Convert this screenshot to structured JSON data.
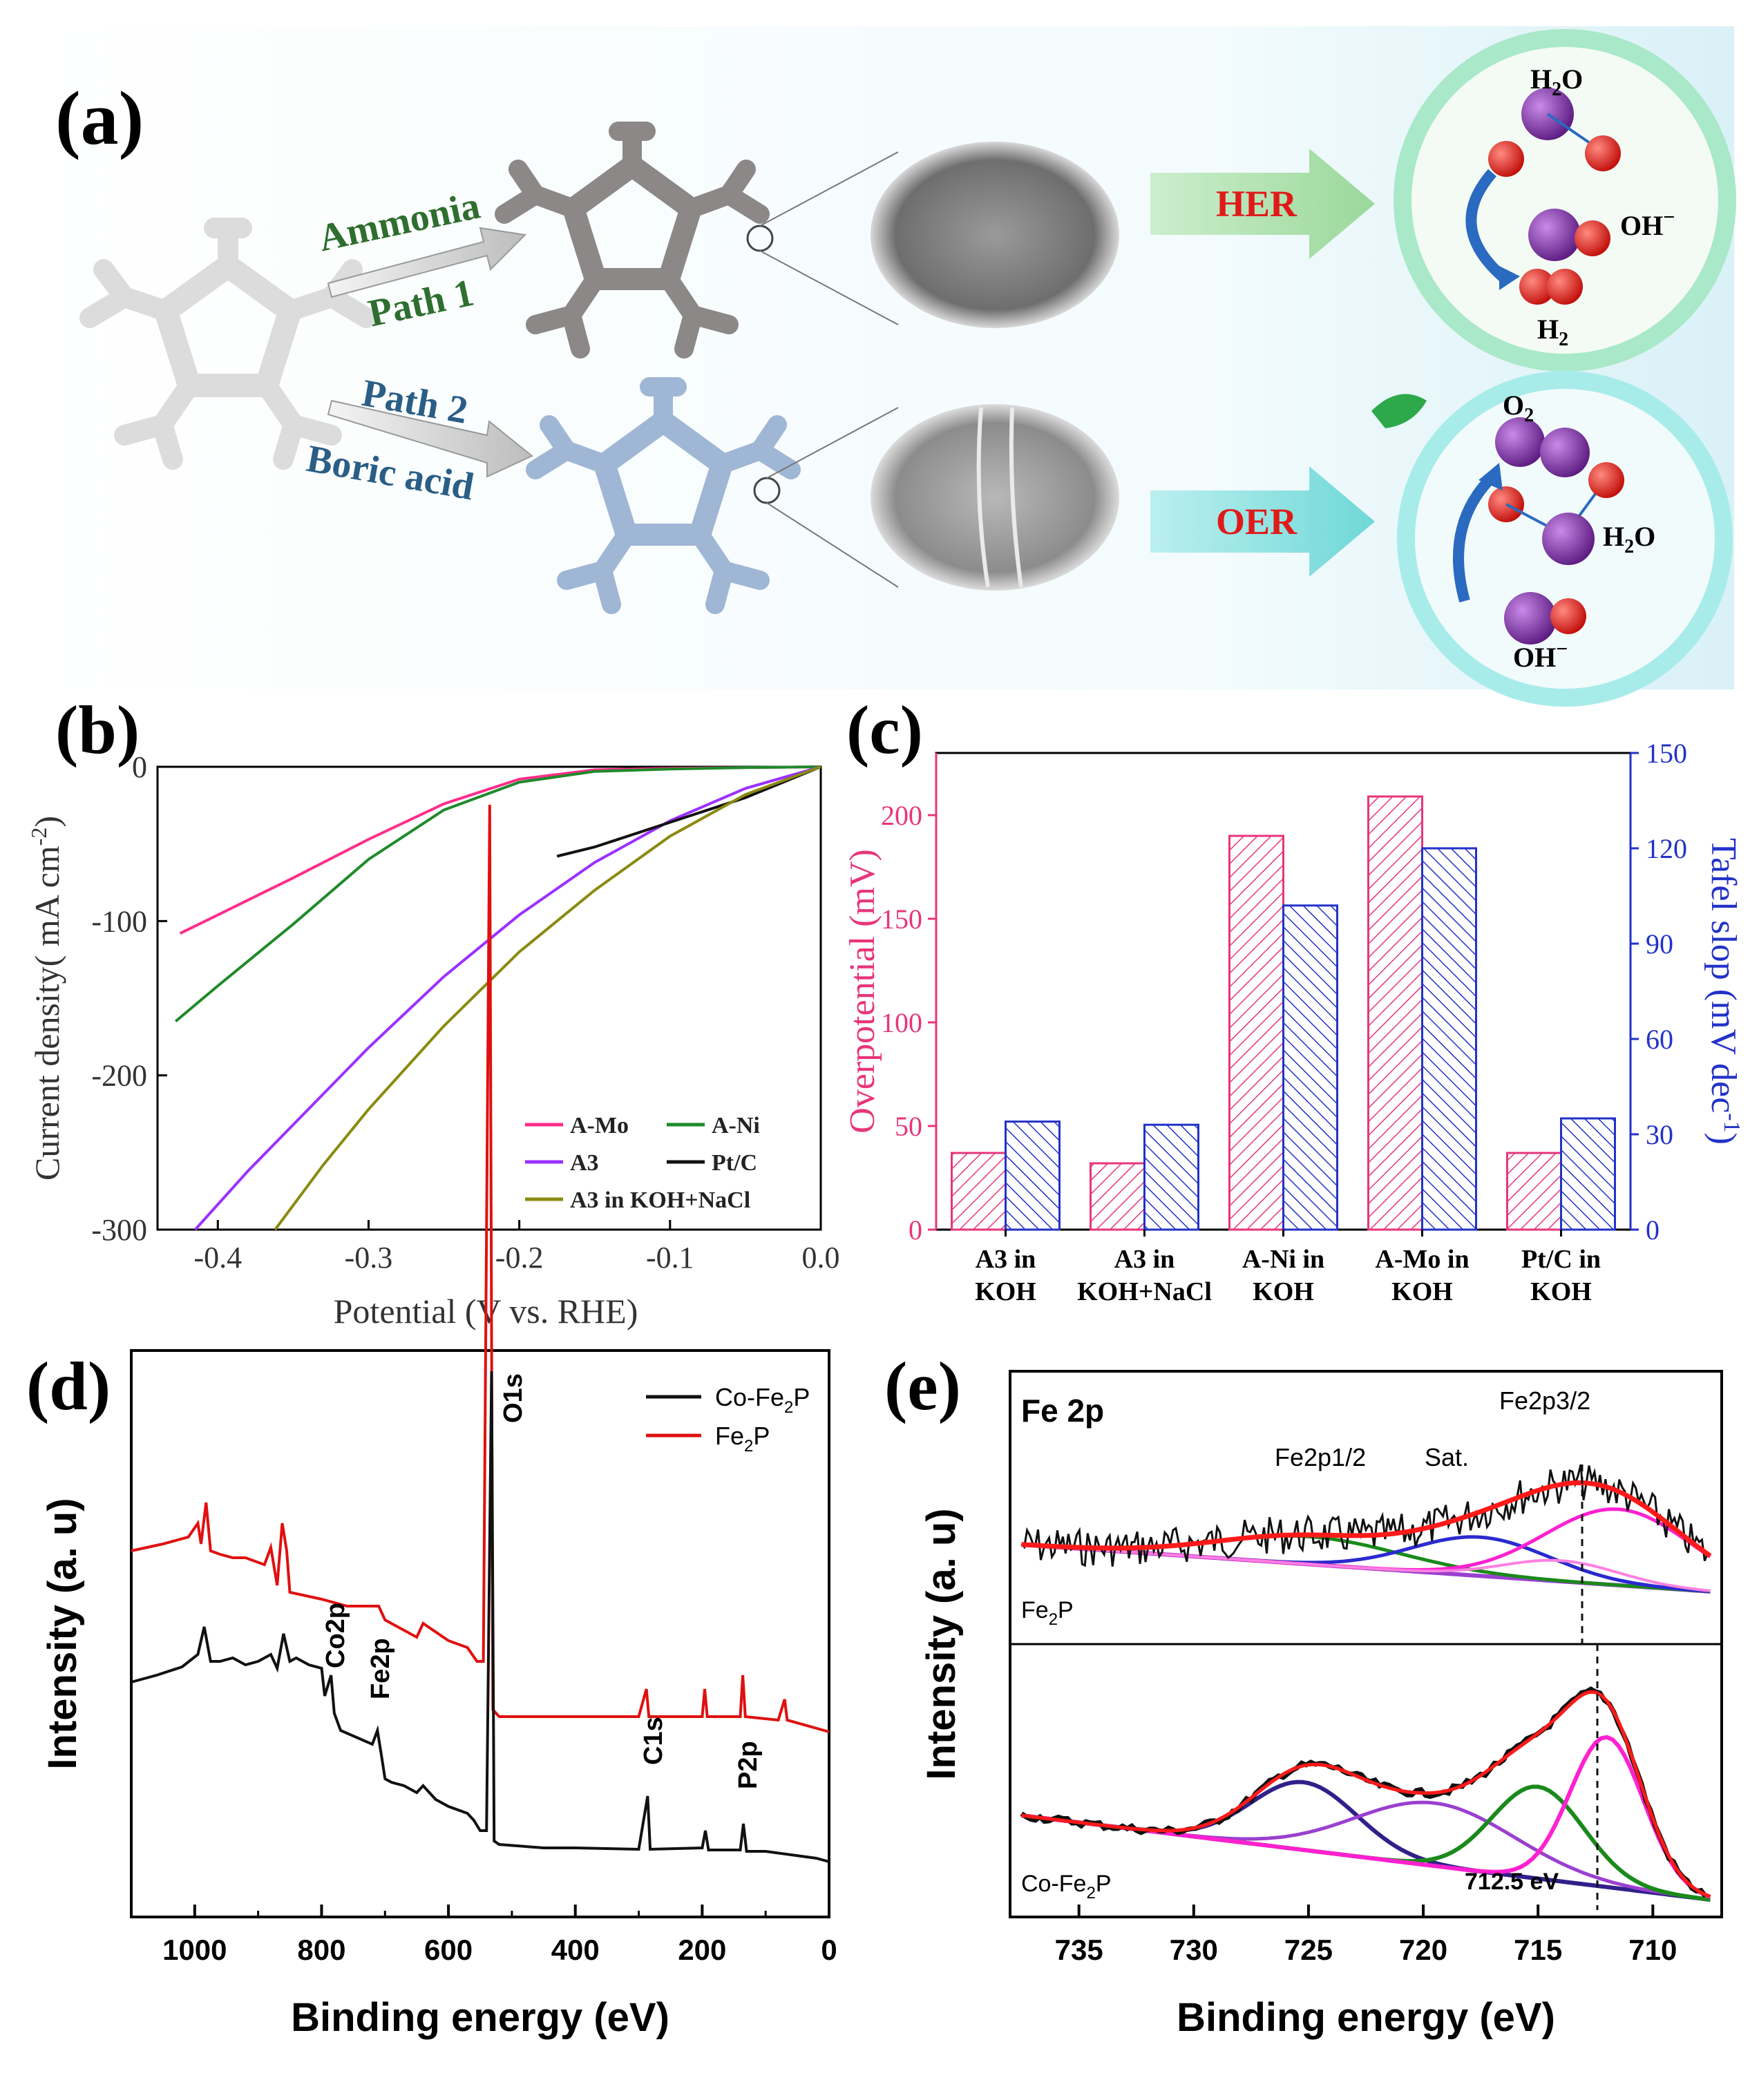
{
  "panel_a": {
    "label": "(a)",
    "path1_top": "Ammonia",
    "path1_bottom": "Path 1",
    "path2_top": "Path 2",
    "path2_bottom": "Boric acid",
    "her": "HER",
    "oer": "OER",
    "her_molecules": {
      "h2o": "H",
      "h2o_sub": "2",
      "h2o_o": "O",
      "oh": "OH",
      "oh_sup": "−",
      "h2": "H",
      "h2_sub": "2"
    },
    "oer_molecules": {
      "o2": "O",
      "o2_sub": "2",
      "h2o": "H",
      "h2o_sub": "2",
      "h2o_o": "O",
      "oh": "OH",
      "oh_sup": "−"
    },
    "colors": {
      "her_bg": "#a9e8c8",
      "oer_bg": "#a8ecea",
      "molecule_purple": "#7a2a9c",
      "molecule_red": "#e0201c",
      "label_red": "#e01a1a",
      "text_green": "#2e6e2e",
      "text_blue": "#2a5e86"
    }
  },
  "chart_data": [
    {
      "panel": "(b)",
      "type": "line",
      "xlabel": "Potential (V vs. RHE)",
      "ylabel_main": "Current density( mA cm",
      "ylabel_sup": "-2",
      "ylabel_end": ")",
      "xlim": [
        -0.44,
        0.0
      ],
      "ylim": [
        -300,
        0
      ],
      "xticks": [
        "-0.4",
        "-0.3",
        "-0.2",
        "-0.1",
        "0.0"
      ],
      "yticks": [
        "0",
        "-100",
        "-200",
        "-300"
      ],
      "series": [
        {
          "name": "A-Mo",
          "color": "#ff2c8a",
          "x": [
            -0.425,
            -0.4,
            -0.35,
            -0.3,
            -0.25,
            -0.2,
            -0.15,
            -0.1,
            -0.05,
            0.0
          ],
          "y": [
            -108,
            -96,
            -72,
            -47,
            -24,
            -8,
            -2,
            -1,
            -0.5,
            0
          ]
        },
        {
          "name": "A-Ni",
          "color": "#1e8a2a",
          "x": [
            -0.428,
            -0.4,
            -0.35,
            -0.3,
            -0.25,
            -0.2,
            -0.15,
            -0.1,
            -0.05,
            0.0
          ],
          "y": [
            -165,
            -142,
            -102,
            -60,
            -28,
            -10,
            -3,
            -1.5,
            -0.5,
            0
          ]
        },
        {
          "name": "A3",
          "color": "#9b30ff",
          "x": [
            -0.415,
            -0.38,
            -0.35,
            -0.3,
            -0.25,
            -0.2,
            -0.15,
            -0.1,
            -0.05,
            0.0
          ],
          "y": [
            -300,
            -262,
            -232,
            -182,
            -136,
            -96,
            -62,
            -35,
            -14,
            0
          ]
        },
        {
          "name": "Pt/C",
          "color": "#111111",
          "x": [
            -0.175,
            -0.15,
            -0.1,
            -0.05,
            0.0
          ],
          "y": [
            -58,
            -52,
            -36,
            -20,
            0
          ]
        },
        {
          "name": "A3 in KOH+NaCl",
          "color": "#8a8a10",
          "x": [
            -0.362,
            -0.33,
            -0.3,
            -0.25,
            -0.2,
            -0.15,
            -0.1,
            -0.05,
            0.0
          ],
          "y": [
            -300,
            -258,
            -222,
            -168,
            -120,
            -80,
            -45,
            -18,
            0
          ]
        }
      ],
      "legend_rows": [
        [
          "A-Mo",
          "A-Ni"
        ],
        [
          "A3",
          "Pt/C"
        ],
        [
          "A3 in KOH+NaCl"
        ]
      ]
    },
    {
      "panel": "(c)",
      "type": "bar",
      "categories": [
        [
          "A3 in",
          "KOH"
        ],
        [
          "A3 in",
          "KOH+NaCl"
        ],
        [
          "A-Ni in",
          "KOH"
        ],
        [
          "A-Mo in",
          "KOH"
        ],
        [
          "Pt/C in",
          "KOH"
        ]
      ],
      "series": [
        {
          "name": "Overpotential",
          "axis": "left",
          "color": "#e8357a",
          "values": [
            37,
            32,
            190,
            209,
            37
          ]
        },
        {
          "name": "Tafel slop",
          "axis": "right",
          "color": "#2232c8",
          "values": [
            34,
            33,
            102,
            120,
            35
          ]
        }
      ],
      "ylabel_left": "Overpotential (mV)",
      "ylabel_right_main": "Tafel slop (mV dec",
      "ylabel_right_sup": "-1",
      "ylabel_right_end": ")",
      "ylim_left": [
        0,
        230
      ],
      "ylim_right": [
        0,
        150
      ],
      "yticks_left": [
        "0",
        "50",
        "100",
        "150",
        "200"
      ],
      "yticks_right": [
        "0",
        "30",
        "60",
        "90",
        "120",
        "150"
      ]
    },
    {
      "panel": "(d)",
      "type": "line",
      "xlabel": "Binding energy (eV)",
      "ylabel": "Intensity (a. u)",
      "xlim": [
        1100,
        0
      ],
      "xticks": [
        "1000",
        "800",
        "600",
        "400",
        "200",
        "0"
      ],
      "annotations": [
        "O1s",
        "Co2p",
        "Fe2p",
        "C1s",
        "P2p"
      ],
      "series": [
        {
          "name": "Co-Fe",
          "name_sub": "2",
          "name_end": "P",
          "color": "#111111"
        },
        {
          "name": "Fe",
          "name_sub": "2",
          "name_end": "P",
          "color": "#e01010"
        }
      ]
    },
    {
      "panel": "(e)",
      "type": "line",
      "title": "Fe 2p",
      "xlabel": "Binding energy (eV)",
      "ylabel": "Intensity (a. u)",
      "xlim": [
        738,
        707
      ],
      "xticks": [
        "735",
        "730",
        "725",
        "720",
        "715",
        "710"
      ],
      "annotations": [
        "Fe2p3/2",
        "Fe2p1/2",
        "Sat.",
        "712.5 eV"
      ],
      "upper_sample": {
        "name": "Fe",
        "sub": "2",
        "end": "P"
      },
      "lower_sample": {
        "name": "Co-Fe",
        "sub": "2",
        "end": "P"
      },
      "colors": {
        "raw": "#111111",
        "fit": "#ff1a1a",
        "green": "#1a8a1a",
        "blue": "#2a2ad0",
        "magenta": "#ff20d0",
        "purple": "#9a40d0",
        "pink": "#ff80e0",
        "navy": "#30208a"
      }
    }
  ]
}
